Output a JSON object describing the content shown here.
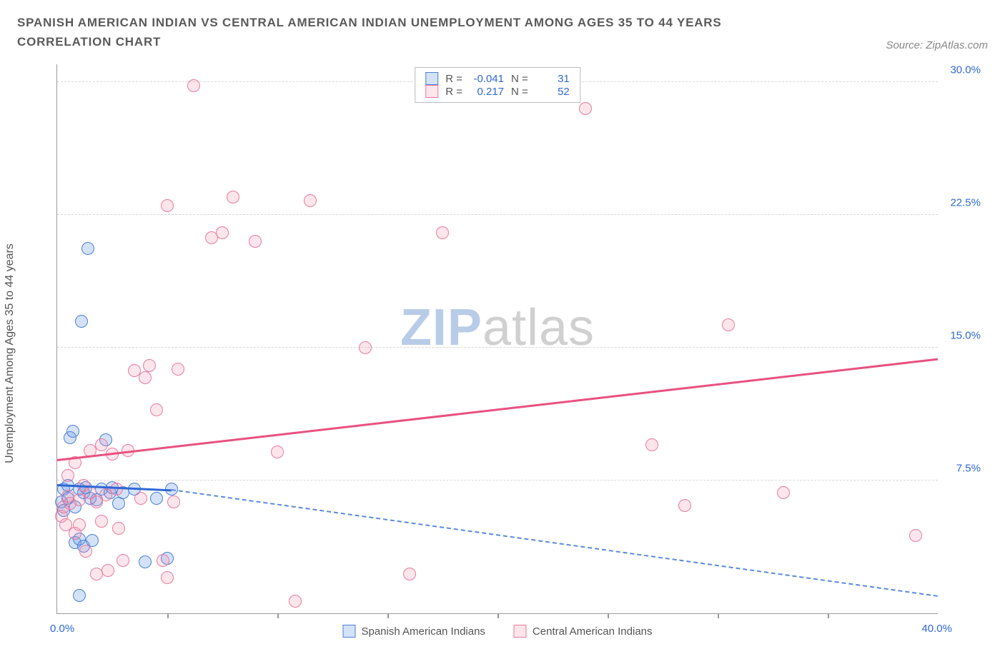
{
  "title": "SPANISH AMERICAN INDIAN VS CENTRAL AMERICAN INDIAN UNEMPLOYMENT AMONG AGES 35 TO 44 YEARS CORRELATION CHART",
  "source": "Source: ZipAtlas.com",
  "y_axis_label": "Unemployment Among Ages 35 to 44 years",
  "watermark_1": "ZIP",
  "watermark_2": "atlas",
  "watermark_color_1": "#b8cce8",
  "watermark_color_2": "#d0d0d0",
  "chart": {
    "type": "scatter",
    "background_color": "#ffffff",
    "grid_color": "#d8d8d8",
    "axis_color": "#999999",
    "xlim": [
      0,
      40
    ],
    "ylim": [
      0,
      31
    ],
    "y_gridlines": [
      7.5,
      15.0,
      22.5,
      30.0
    ],
    "y_tick_labels": [
      "7.5%",
      "15.0%",
      "22.5%",
      "30.0%"
    ],
    "x_ticks": [
      5,
      10,
      15,
      20,
      25,
      30,
      35
    ],
    "x_origin_label": "0.0%",
    "x_end_label": "40.0%",
    "series": [
      {
        "name": "Spanish American Indians",
        "short": "blue",
        "marker_fill": "rgba(100,150,230,0.28)",
        "marker_stroke": "#4a7fd8",
        "marker_size": 18,
        "stats": {
          "R": "-0.041",
          "N": "31"
        },
        "trend": {
          "x1": 0,
          "y1": 7.3,
          "x2": 5.2,
          "y2": 7.0,
          "color": "#2f68d6",
          "dashed": false,
          "width": 3
        },
        "trend_ext": {
          "x1": 5.2,
          "y1": 7.0,
          "x2": 40,
          "y2": 1.0,
          "color": "#5a8adf",
          "dashed": true,
          "width": 2
        },
        "points": [
          [
            0.2,
            6.3
          ],
          [
            0.3,
            5.8
          ],
          [
            0.3,
            7.0
          ],
          [
            0.5,
            6.5
          ],
          [
            0.5,
            7.2
          ],
          [
            0.6,
            9.9
          ],
          [
            0.7,
            10.3
          ],
          [
            0.8,
            4.0
          ],
          [
            0.8,
            6.0
          ],
          [
            1.0,
            7.0
          ],
          [
            1.0,
            4.2
          ],
          [
            1.0,
            1.0
          ],
          [
            1.1,
            16.5
          ],
          [
            1.2,
            6.8
          ],
          [
            1.2,
            3.8
          ],
          [
            1.3,
            7.1
          ],
          [
            1.4,
            20.6
          ],
          [
            1.5,
            6.5
          ],
          [
            1.6,
            4.1
          ],
          [
            1.8,
            6.4
          ],
          [
            2.0,
            7.0
          ],
          [
            2.2,
            9.8
          ],
          [
            2.4,
            6.8
          ],
          [
            2.5,
            7.1
          ],
          [
            2.8,
            6.2
          ],
          [
            3.0,
            6.8
          ],
          [
            3.5,
            7.0
          ],
          [
            4.0,
            2.9
          ],
          [
            4.5,
            6.5
          ],
          [
            5.0,
            3.1
          ],
          [
            5.2,
            7.0
          ]
        ]
      },
      {
        "name": "Central American Indians",
        "short": "pink",
        "marker_fill": "rgba(240,140,170,0.22)",
        "marker_stroke": "#e87aa0",
        "marker_size": 18,
        "stats": {
          "R": "0.217",
          "N": "52"
        },
        "trend": {
          "x1": 0,
          "y1": 8.7,
          "x2": 40,
          "y2": 14.4,
          "color": "#e8517f",
          "dashed": false,
          "width": 3
        },
        "points": [
          [
            0.2,
            5.5
          ],
          [
            0.3,
            6.0
          ],
          [
            0.4,
            5.0
          ],
          [
            0.5,
            6.6
          ],
          [
            0.5,
            7.8
          ],
          [
            0.6,
            6.2
          ],
          [
            0.8,
            4.5
          ],
          [
            0.8,
            8.5
          ],
          [
            1.0,
            5.0
          ],
          [
            1.0,
            6.4
          ],
          [
            1.2,
            7.2
          ],
          [
            1.3,
            3.5
          ],
          [
            1.5,
            6.8
          ],
          [
            1.5,
            9.2
          ],
          [
            1.8,
            2.2
          ],
          [
            1.8,
            6.3
          ],
          [
            2.0,
            9.5
          ],
          [
            2.0,
            5.2
          ],
          [
            2.2,
            6.7
          ],
          [
            2.3,
            2.4
          ],
          [
            2.5,
            9.0
          ],
          [
            2.7,
            7.0
          ],
          [
            2.8,
            4.8
          ],
          [
            3.0,
            3.0
          ],
          [
            3.2,
            9.2
          ],
          [
            3.5,
            13.7
          ],
          [
            3.8,
            6.5
          ],
          [
            4.0,
            13.3
          ],
          [
            4.2,
            14.0
          ],
          [
            4.5,
            11.5
          ],
          [
            4.8,
            3.0
          ],
          [
            5.0,
            2.0
          ],
          [
            5.0,
            23.0
          ],
          [
            5.3,
            6.3
          ],
          [
            5.5,
            13.8
          ],
          [
            6.2,
            29.8
          ],
          [
            7.0,
            21.2
          ],
          [
            7.5,
            21.5
          ],
          [
            8.0,
            23.5
          ],
          [
            9.0,
            21.0
          ],
          [
            10.0,
            9.1
          ],
          [
            10.8,
            0.7
          ],
          [
            11.5,
            23.3
          ],
          [
            14.0,
            15.0
          ],
          [
            16.0,
            2.2
          ],
          [
            17.5,
            21.5
          ],
          [
            24.0,
            28.5
          ],
          [
            27.0,
            9.5
          ],
          [
            28.5,
            6.1
          ],
          [
            30.5,
            16.3
          ],
          [
            33.0,
            6.8
          ],
          [
            39.0,
            4.4
          ]
        ]
      }
    ]
  },
  "legend_top": {
    "r_label": "R =",
    "n_label": "N =",
    "value_color": "#2f68d6"
  },
  "legend_bottom_label_color": "#555555",
  "tick_label_color": "#2f68d6"
}
